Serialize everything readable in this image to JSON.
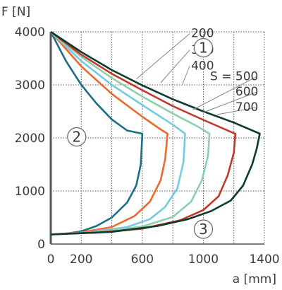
{
  "chart_data": {
    "type": "line",
    "xlabel": "a [mm]",
    "ylabel": "F [N]",
    "xlim": [
      0,
      1400
    ],
    "ylim": [
      0,
      4000
    ],
    "xticks": [
      0,
      200,
      600,
      1000,
      1400
    ],
    "yticks": [
      0,
      1000,
      2000,
      3000,
      4000
    ],
    "grid": true,
    "legend": "callouts",
    "series": [
      {
        "name": "200",
        "color": "#1b6f82",
        "upper": [
          [
            0,
            4000
          ],
          [
            100,
            3450
          ],
          [
            200,
            3000
          ],
          [
            300,
            2650
          ],
          [
            400,
            2350
          ],
          [
            500,
            2140
          ],
          [
            600,
            2080
          ]
        ],
        "lower": [
          [
            0,
            180
          ],
          [
            100,
            195
          ],
          [
            200,
            240
          ],
          [
            300,
            340
          ],
          [
            400,
            500
          ],
          [
            500,
            780
          ],
          [
            560,
            1100
          ],
          [
            590,
            1500
          ],
          [
            600,
            2080
          ]
        ]
      },
      {
        "name": "300",
        "color": "#ed6a2c",
        "upper": [
          [
            0,
            4000
          ],
          [
            200,
            3350
          ],
          [
            400,
            2830
          ],
          [
            600,
            2400
          ],
          [
            720,
            2160
          ],
          [
            765,
            2080
          ]
        ],
        "lower": [
          [
            0,
            180
          ],
          [
            200,
            220
          ],
          [
            400,
            320
          ],
          [
            550,
            530
          ],
          [
            650,
            800
          ],
          [
            720,
            1200
          ],
          [
            750,
            1600
          ],
          [
            765,
            2080
          ]
        ]
      },
      {
        "name": "400",
        "color": "#74cbe3",
        "upper": [
          [
            0,
            4000
          ],
          [
            200,
            3450
          ],
          [
            400,
            3000
          ],
          [
            600,
            2620
          ],
          [
            800,
            2250
          ],
          [
            880,
            2080
          ]
        ],
        "lower": [
          [
            0,
            180
          ],
          [
            250,
            220
          ],
          [
            500,
            320
          ],
          [
            650,
            470
          ],
          [
            750,
            700
          ],
          [
            830,
            1050
          ],
          [
            870,
            1550
          ],
          [
            880,
            2080
          ]
        ]
      },
      {
        "name": "S = 500",
        "color": "#8fceaa",
        "upper": [
          [
            0,
            4000
          ],
          [
            200,
            3530
          ],
          [
            400,
            3130
          ],
          [
            600,
            2780
          ],
          [
            800,
            2460
          ],
          [
            960,
            2220
          ],
          [
            1040,
            2080
          ]
        ],
        "lower": [
          [
            0,
            180
          ],
          [
            300,
            220
          ],
          [
            600,
            330
          ],
          [
            800,
            510
          ],
          [
            920,
            800
          ],
          [
            990,
            1200
          ],
          [
            1030,
            1650
          ],
          [
            1040,
            2080
          ]
        ]
      },
      {
        "name": "600",
        "color": "#c0392b",
        "upper": [
          [
            0,
            4000
          ],
          [
            200,
            3570
          ],
          [
            400,
            3210
          ],
          [
            600,
            2900
          ],
          [
            800,
            2600
          ],
          [
            1000,
            2340
          ],
          [
            1200,
            2090
          ],
          [
            1210,
            2080
          ]
        ],
        "lower": [
          [
            0,
            180
          ],
          [
            300,
            215
          ],
          [
            600,
            290
          ],
          [
            850,
            450
          ],
          [
            1000,
            640
          ],
          [
            1100,
            900
          ],
          [
            1160,
            1300
          ],
          [
            1200,
            1720
          ],
          [
            1210,
            2080
          ]
        ]
      },
      {
        "name": "700",
        "color": "#0d3c2e",
        "upper": [
          [
            0,
            4000
          ],
          [
            200,
            3620
          ],
          [
            400,
            3280
          ],
          [
            600,
            2990
          ],
          [
            800,
            2730
          ],
          [
            1000,
            2500
          ],
          [
            1200,
            2290
          ],
          [
            1370,
            2080
          ]
        ],
        "lower": [
          [
            0,
            180
          ],
          [
            400,
            230
          ],
          [
            700,
            340
          ],
          [
            900,
            470
          ],
          [
            1050,
            620
          ],
          [
            1180,
            820
          ],
          [
            1260,
            1100
          ],
          [
            1320,
            1500
          ],
          [
            1350,
            1800
          ],
          [
            1370,
            2080
          ]
        ]
      }
    ],
    "annotations": [
      "1",
      "2",
      "3"
    ],
    "annotation_positions": [
      [
        1000,
        3700
      ],
      [
        170,
        2020
      ],
      [
        1000,
        280
      ]
    ],
    "callout_targets": [
      {
        "series": "200",
        "label_at": [
          920,
          3900
        ],
        "point": [
          560,
          3110
        ]
      },
      {
        "series": "300",
        "label_at": [
          920,
          3590
        ],
        "point": [
          720,
          3040
        ]
      },
      {
        "series": "400",
        "label_at": [
          920,
          3290
        ],
        "point": [
          860,
          2990
        ]
      },
      {
        "series": "S = 500",
        "label_at": [
          1360,
          3090
        ],
        "point": [
          930,
          2530
        ]
      },
      {
        "series": "600",
        "label_at": [
          1360,
          2800
        ],
        "point": [
          1000,
          2480
        ]
      },
      {
        "series": "700",
        "label_at": [
          1360,
          2510
        ],
        "point": [
          1090,
          2440
        ]
      }
    ]
  }
}
